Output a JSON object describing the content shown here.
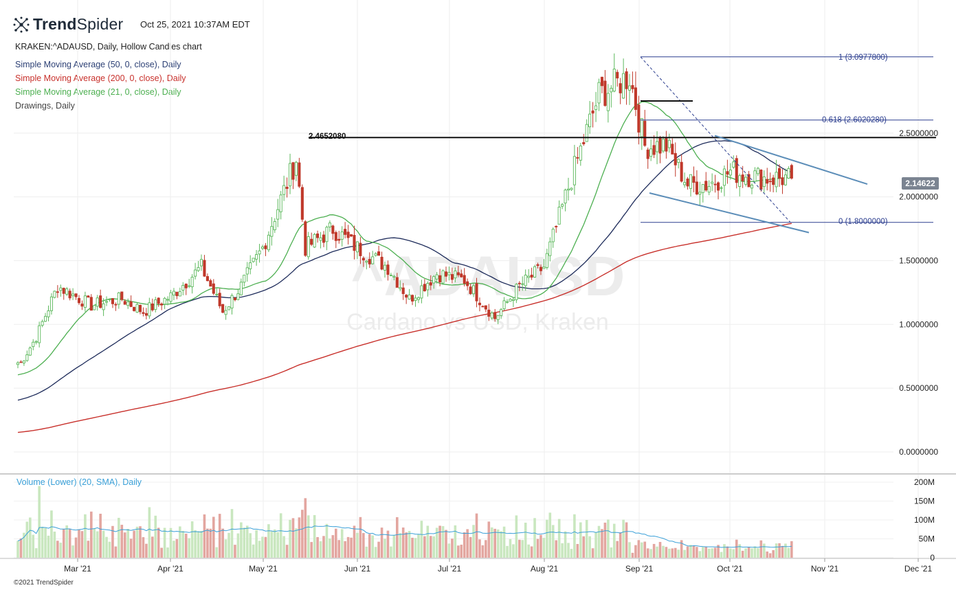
{
  "header": {
    "logo_bold": "Trend",
    "logo_light": "Spider",
    "timestamp": "Oct 25, 2021 10:37AM EDT"
  },
  "legend": {
    "symbol": "KRAKEN:^ADAUSD, Daily, Hollow Candles chart",
    "sma50": "Simple Moving Average (50, 0, close), Daily",
    "sma200": "Simple Moving Average (200, 0, close), Daily",
    "sma21": "Simple Moving Average (21, 0, close), Daily",
    "drawings": "Drawings, Daily"
  },
  "colors": {
    "up": "#5cb85c",
    "down": "#c0392b",
    "sma50": "#1d2b5a",
    "sma200": "#c8302b",
    "sma21": "#4caf50",
    "trendline": "#5b8db8",
    "fib": "#2c3e8f",
    "volume_line": "#3aa0d8",
    "vol_up": "#c9e7bf",
    "vol_down": "#e3a6a0"
  },
  "watermark": {
    "symbol": "^ADAUSD",
    "name": "Cardano vs USD, Kraken"
  },
  "last_price": "2.14622",
  "resistance_label": "2.4652080",
  "fib_labels": {
    "top": "1 (3.0977800)",
    "mid": "0.618 (2.6020280)",
    "bottom": "0 (1.8000000)"
  },
  "volume_legend": "Volume (Lower) (20, SMA), Daily",
  "copyright": "©2021 TrendSpider",
  "chart_data": {
    "type": "candlestick",
    "title": "KRAKEN:^ADAUSD, Daily, Hollow Candles chart",
    "price_axis": {
      "ticks": [
        "2.5000000",
        "2.0000000",
        "1.5000000",
        "1.0000000",
        "0.5000000",
        "0.0000000"
      ],
      "values": [
        2.5,
        2.0,
        1.5,
        1.0,
        0.5,
        0.0
      ],
      "ylim": [
        -0.05,
        3.15
      ]
    },
    "volume_axis": {
      "ticks": [
        "200M",
        "150M",
        "100M",
        "50M",
        "0"
      ],
      "values": [
        200,
        150,
        100,
        50,
        0
      ]
    },
    "x_axis": {
      "ticks": [
        "Mar '21",
        "Apr '21",
        "May '21",
        "Jun '21",
        "Jul '21",
        "Aug '21",
        "Sep '21",
        "Oct '21",
        "Nov '21",
        "Dec '21"
      ]
    },
    "close_path": [
      {
        "date": "Feb 15",
        "close": 0.7
      },
      {
        "date": "Feb 20",
        "close": 0.9
      },
      {
        "date": "Feb 27",
        "close": 1.3
      },
      {
        "date": "Mar 10",
        "close": 1.15
      },
      {
        "date": "Mar 20",
        "close": 1.2
      },
      {
        "date": "Mar 27",
        "close": 1.1
      },
      {
        "date": "Apr 5",
        "close": 1.22
      },
      {
        "date": "Apr 15",
        "close": 1.45
      },
      {
        "date": "Apr 22",
        "close": 1.1
      },
      {
        "date": "Apr 28",
        "close": 1.3
      },
      {
        "date": "May 5",
        "close": 1.6
      },
      {
        "date": "May 16",
        "close": 2.3
      },
      {
        "date": "May 19",
        "close": 1.6
      },
      {
        "date": "May 28",
        "close": 1.75
      },
      {
        "date": "Jun 5",
        "close": 1.6
      },
      {
        "date": "Jun 15",
        "close": 1.45
      },
      {
        "date": "Jun 22",
        "close": 1.2
      },
      {
        "date": "Jul 1",
        "close": 1.4
      },
      {
        "date": "Jul 10",
        "close": 1.35
      },
      {
        "date": "Jul 20",
        "close": 1.05
      },
      {
        "date": "Jul 28",
        "close": 1.3
      },
      {
        "date": "Aug 5",
        "close": 1.45
      },
      {
        "date": "Aug 14",
        "close": 2.15
      },
      {
        "date": "Aug 23",
        "close": 2.8
      },
      {
        "date": "Sep 2",
        "close": 2.95
      },
      {
        "date": "Sep 7",
        "close": 2.4
      },
      {
        "date": "Sep 14",
        "close": 2.4
      },
      {
        "date": "Sep 21",
        "close": 2.1
      },
      {
        "date": "Sep 28",
        "close": 2.1
      },
      {
        "date": "Oct 5",
        "close": 2.2
      },
      {
        "date": "Oct 15",
        "close": 2.15
      },
      {
        "date": "Oct 25",
        "close": 2.14622
      }
    ],
    "horizontal_levels": [
      {
        "label": "2.4652080",
        "value": 2.465208
      },
      {
        "label": "1 (3.0977800)",
        "value": 3.09778
      },
      {
        "label": "0.618 (2.6020280)",
        "value": 2.602028
      },
      {
        "label": "0 (1.8000000)",
        "value": 1.8
      }
    ],
    "grid": true
  }
}
